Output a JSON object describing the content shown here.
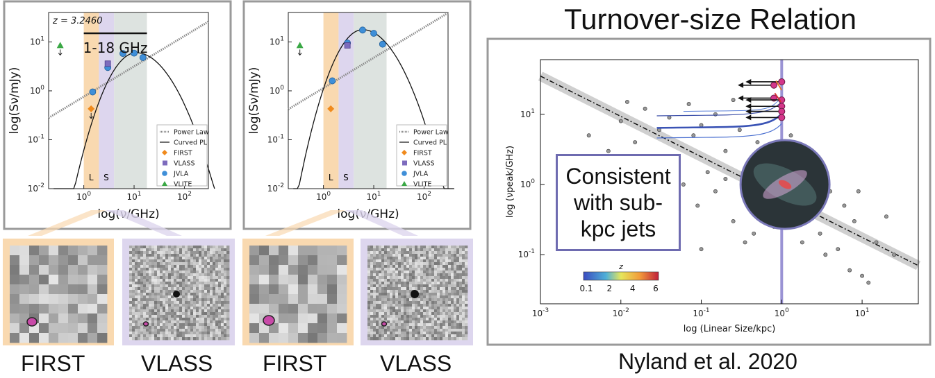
{
  "panel_labels": [
    "FIRST",
    "VLASS",
    "FIRST",
    "VLASS"
  ],
  "right_title": "Turnover-size Relation",
  "citation": "Nyland et al. 2020",
  "callout_text": [
    "Consistent",
    "with sub-",
    "kpc jets"
  ],
  "colors": {
    "first_band": "#f9d9b0",
    "vlass_band": "#ddd6ee",
    "jvla_band": "#dde3e0",
    "jvla_marker": "#3f8fd8",
    "first_marker": "#f08a1c",
    "vlass_marker": "#7d6bbd",
    "vlite_marker": "#3aa845",
    "callout_border": "#6e6bb0",
    "size_line": "#9a93d4"
  },
  "chart_data": [
    {
      "type": "scatter",
      "annotation": "z = 3.2460",
      "band_label": "1-18 GHz",
      "xlabel": "log(ν/GHz)",
      "ylabel": "log(Sν/mJy)",
      "xscale": "log",
      "yscale": "log",
      "xlim": [
        0.2,
        300
      ],
      "ylim": [
        0.01,
        40
      ],
      "xticks": [
        "10^0",
        "10^1",
        "10^2"
      ],
      "yticks": [
        "10^-2",
        "10^-1",
        "10^0",
        "10^1"
      ],
      "band_letters": [
        "L",
        "S"
      ],
      "legend_position": "lower-right",
      "legend": [
        "Power Law",
        "Curved PL",
        "FIRST",
        "VLASS",
        "JVLA",
        "VLITE"
      ],
      "series": [
        {
          "name": "JVLA",
          "x": [
            1.5,
            3.0,
            6.0,
            10.0,
            15.0
          ],
          "y": [
            0.95,
            3.0,
            5.8,
            5.9,
            4.8
          ]
        },
        {
          "name": "VLASS",
          "x": [
            3.0
          ],
          "y": [
            3.6
          ],
          "upper_limit": false
        },
        {
          "name": "FIRST",
          "x": [
            1.4
          ],
          "y": [
            0.43
          ],
          "upper_limit": true
        },
        {
          "name": "VLITE",
          "x": [
            0.34
          ],
          "y": [
            8.5
          ],
          "upper_limit": true
        }
      ]
    },
    {
      "type": "scatter",
      "xlabel": "log(ν/GHz)",
      "ylabel": "log(Sν/mJy)",
      "xscale": "log",
      "yscale": "log",
      "xlim": [
        0.2,
        300
      ],
      "ylim": [
        0.01,
        40
      ],
      "xticks": [
        "10^0",
        "10^1",
        "10^2"
      ],
      "yticks": [
        "10^-2",
        "10^-1",
        "10^0",
        "10^1"
      ],
      "band_letters": [
        "L",
        "S"
      ],
      "legend_position": "lower-right",
      "legend": [
        "Power Law",
        "Curved PL",
        "FIRST",
        "VLASS",
        "JVLA",
        "VLITE"
      ],
      "series": [
        {
          "name": "JVLA",
          "x": [
            1.5,
            3.0,
            6.0,
            10.0,
            15.0
          ],
          "y": [
            1.6,
            9.5,
            17.5,
            15.0,
            9.0
          ]
        },
        {
          "name": "VLASS",
          "x": [
            3.0
          ],
          "y": [
            8.5
          ],
          "upper_limit": false
        },
        {
          "name": "FIRST",
          "x": [
            1.4
          ],
          "y": [
            0.43
          ],
          "upper_limit": false
        },
        {
          "name": "VLITE",
          "x": [
            0.34
          ],
          "y": [
            8.5
          ],
          "upper_limit": true
        }
      ]
    },
    {
      "type": "scatter",
      "xlabel": "log (Linear Size/kpc)",
      "ylabel": "log (νpeak/GHz)",
      "xscale": "log",
      "yscale": "log",
      "xlim": [
        0.001,
        50
      ],
      "ylim": [
        0.02,
        60
      ],
      "xticks": [
        "10^-3",
        "10^-2",
        "10^-1",
        "10^0",
        "10^1"
      ],
      "yticks": [
        "10^-1",
        "10^0",
        "10^1"
      ],
      "colorbar": {
        "label": "z",
        "ticks": [
          "0.1",
          "2",
          "4",
          "6"
        ]
      },
      "vertical_line_x": 1.0,
      "relation": {
        "x": [
          0.001,
          50
        ],
        "y": [
          35,
          0.07
        ]
      },
      "series": [
        {
          "name": "sample",
          "points": [
            [
              0.004,
              5
            ],
            [
              0.007,
              3
            ],
            [
              0.01,
              8
            ],
            [
              0.015,
              4
            ],
            [
              0.02,
              12
            ],
            [
              0.03,
              6
            ],
            [
              0.04,
              9
            ],
            [
              0.05,
              2
            ],
            [
              0.07,
              14
            ],
            [
              0.08,
              5
            ],
            [
              0.1,
              7
            ],
            [
              0.12,
              1.5
            ],
            [
              0.15,
              10
            ],
            [
              0.2,
              3
            ],
            [
              0.25,
              16
            ],
            [
              0.3,
              6
            ],
            [
              0.4,
              1.2
            ],
            [
              0.5,
              4
            ],
            [
              0.06,
              1.0
            ],
            [
              0.09,
              0.5
            ],
            [
              0.03,
              2.5
            ],
            [
              0.02,
              2.0
            ],
            [
              0.15,
              0.8
            ],
            [
              0.25,
              0.3
            ],
            [
              0.35,
              0.15
            ],
            [
              0.2,
              1.2
            ],
            [
              0.012,
              15
            ],
            [
              0.6,
              0.5
            ],
            [
              0.8,
              0.25
            ],
            [
              1.5,
              0.6
            ],
            [
              2,
              0.4
            ],
            [
              3,
              0.2
            ],
            [
              4,
              0.8
            ],
            [
              5,
              0.12
            ],
            [
              8,
              0.3
            ],
            [
              10,
              0.05
            ],
            [
              15,
              0.15
            ],
            [
              20,
              0.35
            ],
            [
              12,
              0.04
            ],
            [
              7,
              0.06
            ],
            [
              2.5,
              1.2
            ],
            [
              1.8,
              0.15
            ],
            [
              0.05,
              0.25
            ],
            [
              0.1,
              0.12
            ],
            [
              0.45,
              0.2
            ],
            [
              3.5,
              0.1
            ],
            [
              6,
              0.5
            ],
            [
              9,
              0.8
            ],
            [
              25,
              0.1
            ],
            [
              1.2,
              3
            ],
            [
              1.3,
              5
            ],
            [
              0.7,
              2
            ],
            [
              0.005,
              1.5
            ],
            [
              0.018,
              0.7
            ],
            [
              0.04,
              0.4
            ]
          ]
        },
        {
          "name": "highlighted",
          "points": [
            [
              0.8,
              26
            ],
            [
              1.0,
              29
            ],
            [
              0.8,
              17
            ],
            [
              1.0,
              16
            ],
            [
              1.0,
              13
            ],
            [
              1.0,
              11
            ],
            [
              1.0,
              9
            ]
          ],
          "upper_limits": true
        }
      ]
    }
  ]
}
